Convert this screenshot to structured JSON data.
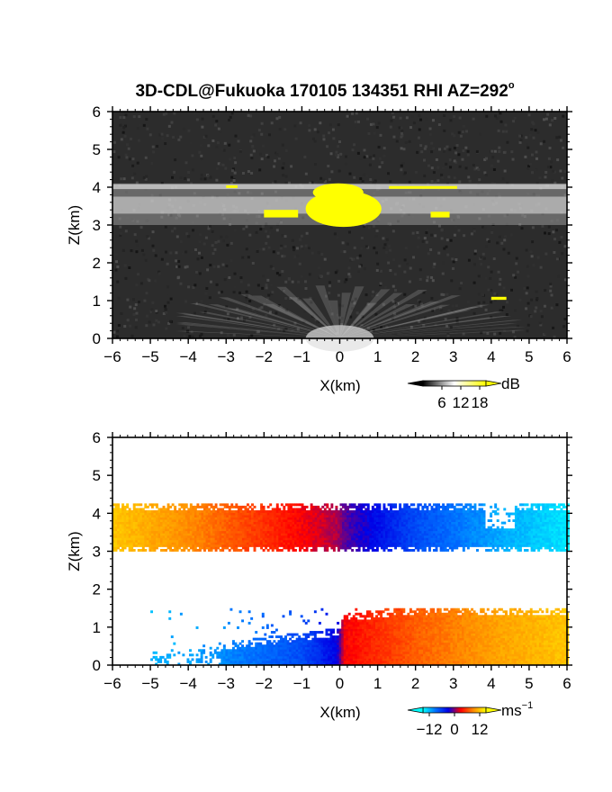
{
  "title": {
    "main": "3D-CDL@Fukuoka 170105 134351 RHI AZ=292",
    "degree_sup": "o"
  },
  "chart_data": [
    {
      "type": "heatmap",
      "quantity": "backscatter intensity",
      "xlabel": "X(km)",
      "ylabel": "Z(km)",
      "xlim": [
        -6,
        6
      ],
      "ylim": [
        0,
        6
      ],
      "xticks": [
        "−6",
        "−5",
        "−4",
        "−3",
        "−2",
        "−1",
        "0",
        "1",
        "2",
        "3",
        "4",
        "5",
        "6"
      ],
      "yticks": [
        "0",
        "1",
        "2",
        "3",
        "4",
        "5",
        "6"
      ],
      "background_color": "#2c2c2c",
      "features": [
        {
          "feature": "cloud layer",
          "x_range": [
            -6,
            6
          ],
          "z_bottom": 3.0,
          "z_top": 4.1,
          "level": "bright"
        },
        {
          "feature": "saturated core (yellow)",
          "x_range": [
            -0.9,
            1.1
          ],
          "z_range": [
            2.95,
            4.1
          ]
        },
        {
          "feature": "saturated patch (yellow)",
          "x_range": [
            -2.0,
            -1.1
          ],
          "z_range": [
            3.2,
            3.4
          ]
        },
        {
          "feature": "saturated patch (yellow)",
          "x_range": [
            2.4,
            2.9
          ],
          "z_range": [
            3.2,
            3.35
          ]
        },
        {
          "feature": "saturated streak (yellow)",
          "x_range": [
            1.3,
            3.1
          ],
          "z_range": [
            3.98,
            4.03
          ]
        },
        {
          "feature": "saturated streak (yellow)",
          "x_range": [
            -3.0,
            -2.7
          ],
          "z_range": [
            4.0,
            4.05
          ]
        },
        {
          "feature": "saturated spot (yellow)",
          "x_range": [
            4.0,
            4.4
          ],
          "z_range": [
            1.02,
            1.1
          ]
        },
        {
          "feature": "boundary-layer fan",
          "x_range": [
            -4.2,
            4.8
          ],
          "z_range": [
            0,
            1.4
          ],
          "level": "medium"
        }
      ],
      "colorbar": {
        "unit": "dB",
        "ticks": [
          "6",
          "12",
          "18"
        ],
        "range": [
          0,
          20
        ],
        "colors": [
          "#000000",
          "#ffffff",
          "#ffff00"
        ]
      }
    },
    {
      "type": "heatmap",
      "quantity": "Doppler velocity",
      "xlabel": "X(km)",
      "ylabel": "Z(km)",
      "xlim": [
        -6,
        6
      ],
      "ylim": [
        0,
        6
      ],
      "xticks": [
        "−6",
        "−5",
        "−4",
        "−3",
        "−2",
        "−1",
        "0",
        "1",
        "2",
        "3",
        "4",
        "5",
        "6"
      ],
      "yticks": [
        "0",
        "1",
        "2",
        "3",
        "4",
        "5",
        "6"
      ],
      "background_color": "#ffffff",
      "layers": [
        {
          "layer": "upper",
          "z_bottom": 3.0,
          "z_top": 4.2,
          "x_range": [
            -6,
            6
          ],
          "velocity_x": [
            -6,
            -4,
            -2,
            -0.1,
            0.1,
            2,
            4,
            6
          ],
          "velocity": [
            12,
            9,
            5,
            1,
            -1,
            -7,
            -11,
            -14
          ]
        },
        {
          "layer": "lower",
          "z_bottom": 0,
          "z_top": 1.5,
          "x_range": [
            -5,
            6
          ],
          "velocity_x": [
            -5,
            -3,
            -1,
            -0.1,
            0.1,
            2,
            4,
            6
          ],
          "velocity": [
            -12,
            -10,
            -7,
            -3,
            3,
            7,
            10,
            12
          ]
        }
      ],
      "colorbar": {
        "unit": "ms",
        "unit_exponent": "−1",
        "ticks": [
          "−12",
          "0",
          "12"
        ],
        "range": [
          -15,
          15
        ],
        "colors": [
          "#00ffff",
          "#0070ff",
          "#0000e6",
          "#ff0000",
          "#ff8c00",
          "#ffff00"
        ]
      }
    }
  ]
}
